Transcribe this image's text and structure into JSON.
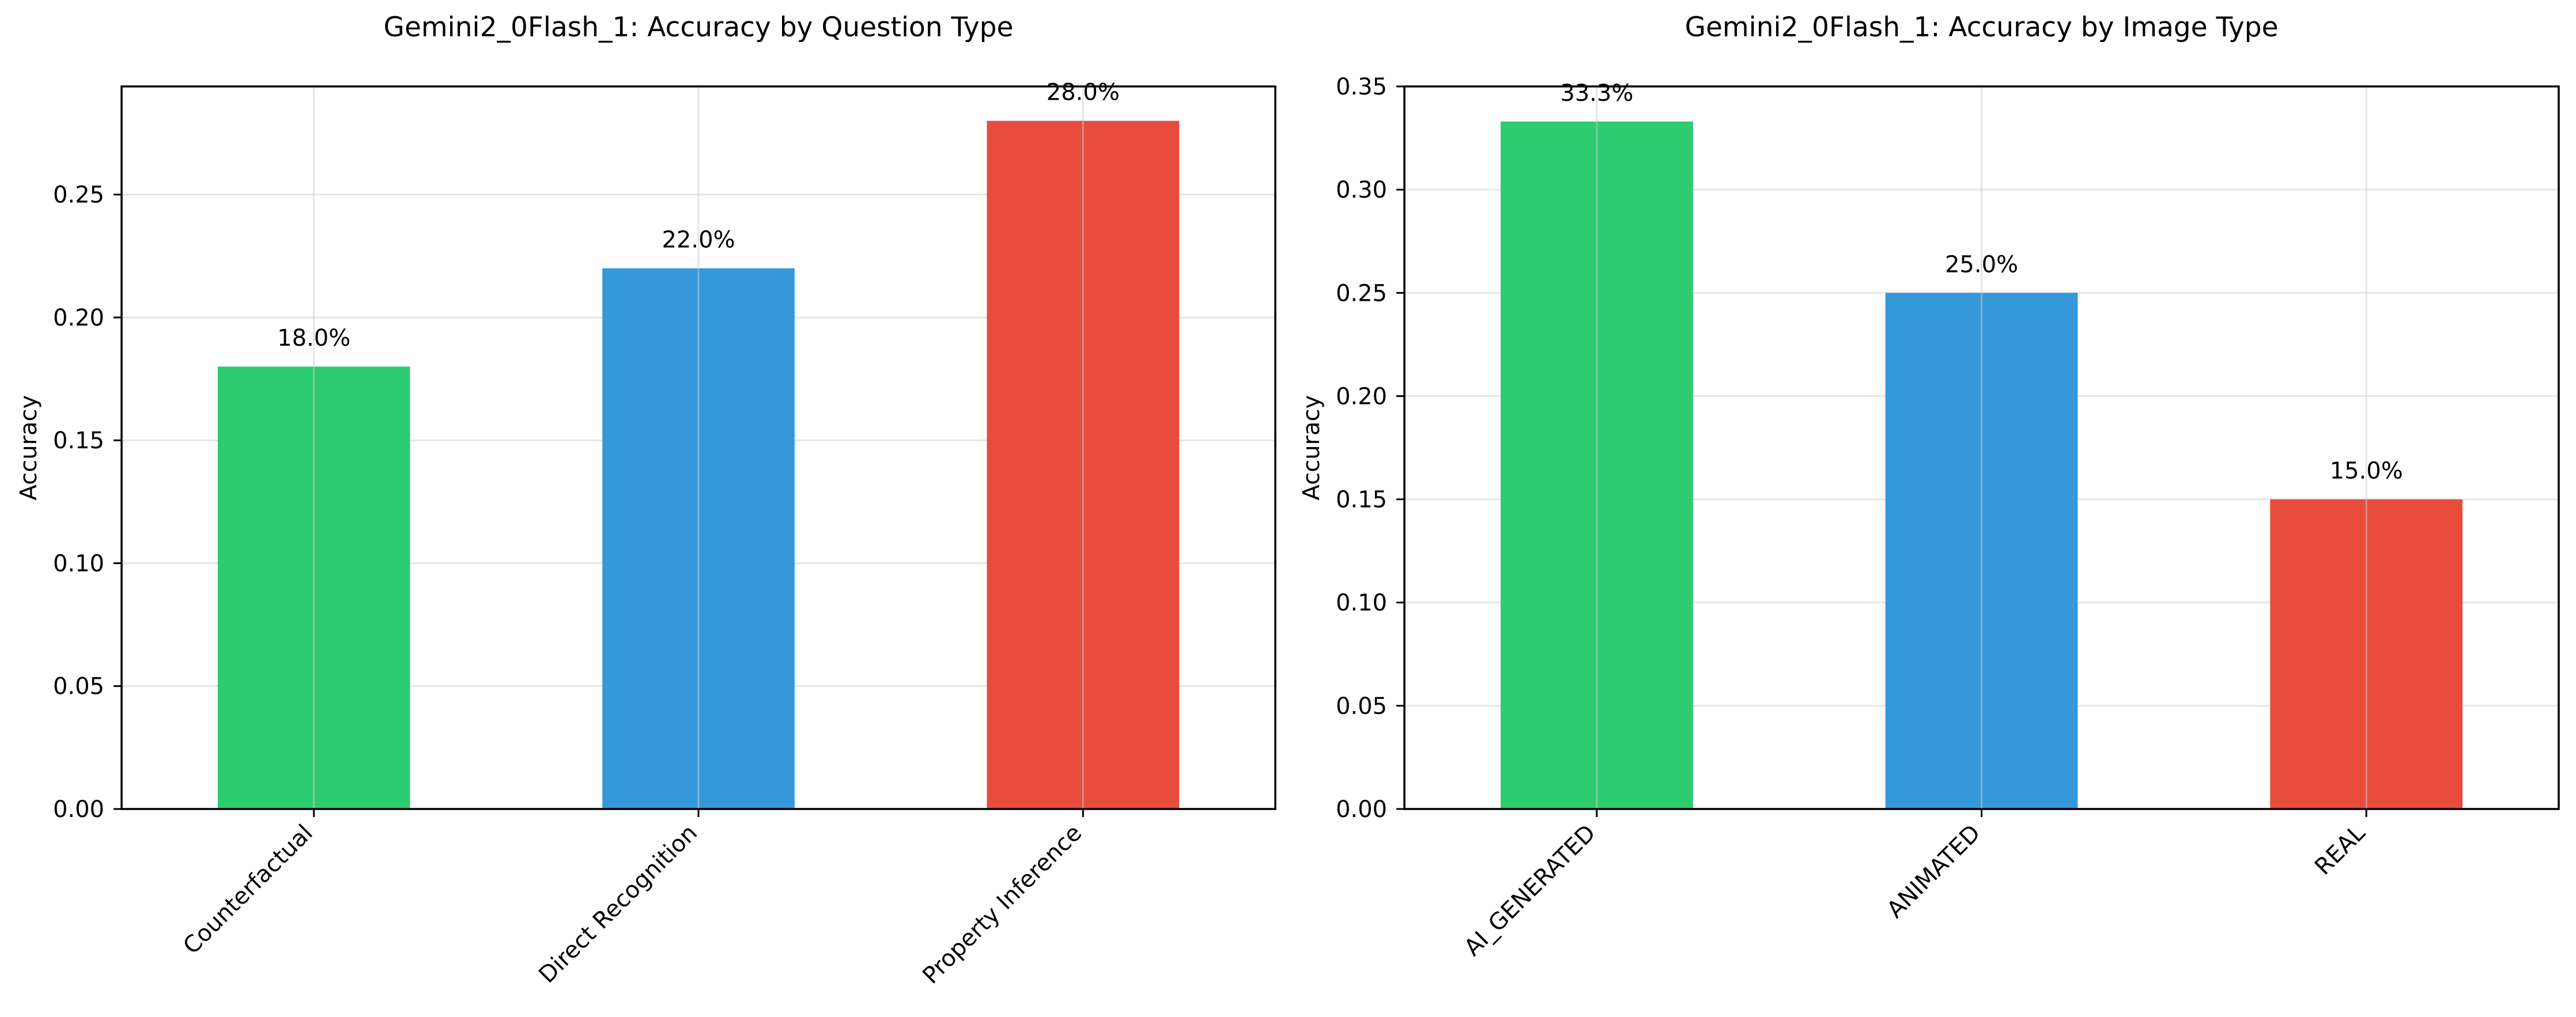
{
  "chart_data": [
    {
      "type": "bar",
      "title": "Gemini2_0Flash_1: Accuracy by Question Type",
      "xlabel": "",
      "ylabel": "Accuracy",
      "categories": [
        "Counterfactual",
        "Direct Recognition",
        "Property Inference"
      ],
      "values": [
        0.18,
        0.22,
        0.28
      ],
      "data_labels": [
        "18.0%",
        "22.0%",
        "28.0%"
      ],
      "colors": [
        "#2ecc71",
        "#3498db",
        "#e74c3c"
      ],
      "ylim": [
        0,
        0.294
      ],
      "yticks": [
        0.0,
        0.05,
        0.1,
        0.15,
        0.2,
        0.25
      ],
      "ytick_labels": [
        "0.00",
        "0.05",
        "0.10",
        "0.15",
        "0.20",
        "0.25"
      ],
      "grid": true,
      "legend": "none"
    },
    {
      "type": "bar",
      "title": "Gemini2_0Flash_1: Accuracy by Image Type",
      "xlabel": "",
      "ylabel": "Accuracy",
      "categories": [
        "AI_GENERATED",
        "ANIMATED",
        "REAL"
      ],
      "values": [
        0.333,
        0.25,
        0.15
      ],
      "data_labels": [
        "33.3%",
        "25.0%",
        "15.0%"
      ],
      "colors": [
        "#2ecc71",
        "#3498db",
        "#e74c3c"
      ],
      "ylim": [
        0,
        0.35
      ],
      "yticks": [
        0.0,
        0.05,
        0.1,
        0.15,
        0.2,
        0.25,
        0.3,
        0.35
      ],
      "ytick_labels": [
        "0.00",
        "0.05",
        "0.10",
        "0.15",
        "0.20",
        "0.25",
        "0.30",
        "0.35"
      ],
      "grid": true,
      "legend": "none"
    }
  ]
}
